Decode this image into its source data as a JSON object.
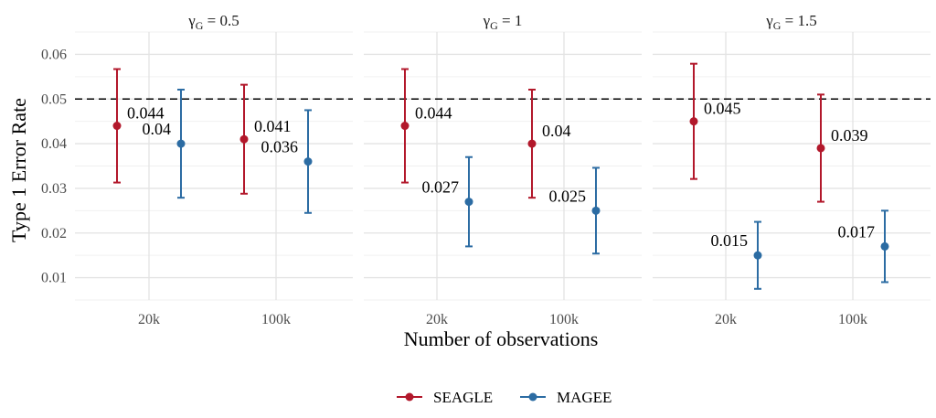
{
  "chart_data": {
    "type": "scatter",
    "subtype": "faceted point-range with error bars",
    "ylabel": "Type 1 Error Rate",
    "xlabel": "Number of observations",
    "categories": [
      "20k",
      "100k"
    ],
    "ylim": [
      0.005,
      0.065
    ],
    "yticks": [
      0.01,
      0.02,
      0.03,
      0.04,
      0.05,
      0.06
    ],
    "ytick_labels": [
      "0.01",
      "0.02",
      "0.03",
      "0.04",
      "0.05",
      "0.06"
    ],
    "reference_line": {
      "y": 0.05,
      "style": "dashed"
    },
    "grid": true,
    "legend_position": "bottom",
    "series_meta": [
      {
        "name": "SEAGLE",
        "color": "#b2182b"
      },
      {
        "name": "MAGEE",
        "color": "#2c6ca3"
      }
    ],
    "facets": [
      {
        "label": {
          "sym": "γ",
          "sub": "G",
          "rest": " = 0.5"
        },
        "series": [
          {
            "name": "SEAGLE",
            "values": [
              0.044,
              0.041
            ],
            "lower": [
              0.0313,
              0.0288
            ],
            "upper": [
              0.0567,
              0.0532
            ],
            "labels": [
              "0.044",
              "0.041"
            ]
          },
          {
            "name": "MAGEE",
            "values": [
              0.04,
              0.036
            ],
            "lower": [
              0.0279,
              0.0245
            ],
            "upper": [
              0.0521,
              0.0475
            ],
            "labels": [
              "0.04",
              "0.036"
            ]
          }
        ]
      },
      {
        "label": {
          "sym": "γ",
          "sub": "G",
          "rest": " = 1"
        },
        "series": [
          {
            "name": "SEAGLE",
            "values": [
              0.044,
              0.04
            ],
            "lower": [
              0.0313,
              0.0279
            ],
            "upper": [
              0.0567,
              0.0521
            ],
            "labels": [
              "0.044",
              "0.04"
            ]
          },
          {
            "name": "MAGEE",
            "values": [
              0.027,
              0.025
            ],
            "lower": [
              0.017,
              0.0154
            ],
            "upper": [
              0.037,
              0.0346
            ],
            "labels": [
              "0.027",
              "0.025"
            ]
          }
        ]
      },
      {
        "label": {
          "sym": "γ",
          "sub": "G",
          "rest": " = 1.5"
        },
        "series": [
          {
            "name": "SEAGLE",
            "values": [
              0.045,
              0.039
            ],
            "lower": [
              0.0321,
              0.027
            ],
            "upper": [
              0.0579,
              0.051
            ],
            "labels": [
              "0.045",
              "0.039"
            ]
          },
          {
            "name": "MAGEE",
            "values": [
              0.015,
              0.017
            ],
            "lower": [
              0.0075,
              0.009
            ],
            "upper": [
              0.0225,
              0.025
            ],
            "labels": [
              "0.015",
              "0.017"
            ]
          }
        ]
      }
    ]
  }
}
